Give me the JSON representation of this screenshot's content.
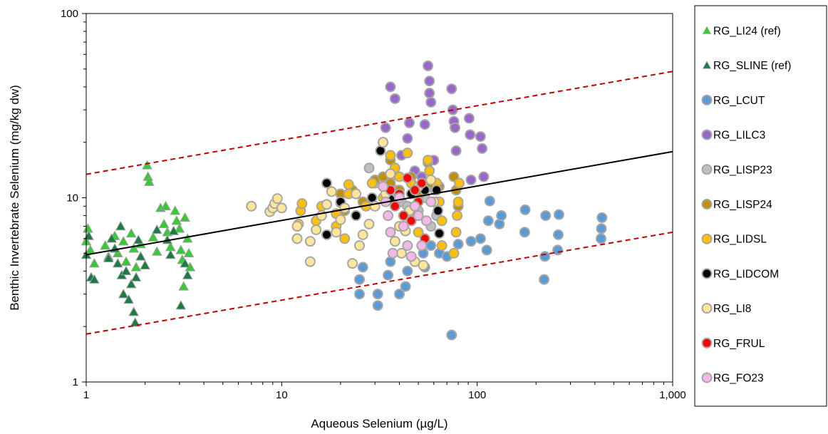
{
  "chart_data": {
    "type": "scatter",
    "title": "",
    "xlabel": "Aqueous Selenium (µg/L)",
    "ylabel": "Benthic Invertebrate Selenium (mg/kg dw)",
    "xscale": "log",
    "yscale": "log",
    "xlim": [
      1,
      1000
    ],
    "ylim": [
      1,
      100
    ],
    "x_ticks": [
      1,
      10,
      100,
      1000
    ],
    "x_tick_labels": [
      "1",
      "10",
      "100",
      "1,000"
    ],
    "y_ticks": [
      1,
      10,
      100
    ],
    "y_tick_labels": [
      "1",
      "10",
      "100"
    ],
    "grid": false,
    "legend_position": "right",
    "fit_line": {
      "style": "solid",
      "color": "#000000",
      "points": [
        [
          1,
          4.9
        ],
        [
          1000,
          17.8
        ]
      ]
    },
    "prediction_bounds": [
      {
        "style": "dashed",
        "color": "#c00000",
        "points": [
          [
            1,
            13.4
          ],
          [
            1000,
            48.5
          ]
        ]
      },
      {
        "style": "dashed",
        "color": "#c00000",
        "points": [
          [
            1,
            1.82
          ],
          [
            1000,
            6.5
          ]
        ]
      }
    ],
    "series": [
      {
        "name": "RG_LI24 (ref)",
        "marker": "triangle",
        "color": "#33cc33",
        "points": [
          [
            1.0,
            5.8
          ],
          [
            1.02,
            6.8
          ],
          [
            1.05,
            5.2
          ],
          [
            1.1,
            4.4
          ],
          [
            1.25,
            5.5
          ],
          [
            1.3,
            4.8
          ],
          [
            1.4,
            6.2
          ],
          [
            1.45,
            5.0
          ],
          [
            1.55,
            5.8
          ],
          [
            1.6,
            4.5
          ],
          [
            1.7,
            6.4
          ],
          [
            1.75,
            5.3
          ],
          [
            1.8,
            4.2
          ],
          [
            1.9,
            5.6
          ],
          [
            2.05,
            15.0
          ],
          [
            2.07,
            13.0
          ],
          [
            2.1,
            12.2
          ],
          [
            2.2,
            6.1
          ],
          [
            2.3,
            5.1
          ],
          [
            2.4,
            8.8
          ],
          [
            2.5,
            7.2
          ],
          [
            2.55,
            9.0
          ],
          [
            2.6,
            6.5
          ],
          [
            2.7,
            5.4
          ],
          [
            2.85,
            8.5
          ],
          [
            2.9,
            7.5
          ],
          [
            3.0,
            6.8
          ],
          [
            3.05,
            5.2
          ],
          [
            3.1,
            4.6
          ],
          [
            3.15,
            3.3
          ],
          [
            3.2,
            7.8
          ],
          [
            3.3,
            6.0
          ],
          [
            3.35,
            5.0
          ],
          [
            3.4,
            4.2
          ]
        ]
      },
      {
        "name": "RG_SLINE (ref)",
        "marker": "triangle",
        "color": "#1e7b45",
        "points": [
          [
            1.0,
            4.9
          ],
          [
            1.03,
            6.2
          ],
          [
            1.06,
            3.7
          ],
          [
            1.1,
            3.6
          ],
          [
            1.3,
            4.7
          ],
          [
            1.35,
            6.0
          ],
          [
            1.4,
            5.3
          ],
          [
            1.45,
            4.4
          ],
          [
            1.5,
            7.0
          ],
          [
            1.52,
            3.8
          ],
          [
            1.55,
            3.0
          ],
          [
            1.6,
            4.0
          ],
          [
            1.65,
            2.8
          ],
          [
            1.7,
            3.4
          ],
          [
            1.75,
            2.4
          ],
          [
            1.78,
            2.1
          ],
          [
            1.8,
            3.7
          ],
          [
            1.85,
            5.9
          ],
          [
            1.9,
            4.8
          ],
          [
            2.0,
            4.3
          ],
          [
            2.3,
            6.7
          ],
          [
            2.6,
            5.9
          ],
          [
            2.7,
            4.9
          ],
          [
            2.8,
            6.6
          ],
          [
            3.05,
            2.6
          ],
          [
            3.2,
            4.4
          ],
          [
            3.3,
            3.8
          ]
        ]
      },
      {
        "name": "RG_LCUT",
        "marker": "circle",
        "color": "#5b9bd5",
        "points": [
          [
            25,
            3.0
          ],
          [
            25,
            3.6
          ],
          [
            26,
            4.2
          ],
          [
            31,
            2.6
          ],
          [
            31,
            3.0
          ],
          [
            35,
            3.8
          ],
          [
            36,
            4.5
          ],
          [
            40,
            3.0
          ],
          [
            43,
            3.3
          ],
          [
            44,
            4.0
          ],
          [
            53,
            5.0
          ],
          [
            54,
            4.2
          ],
          [
            58,
            5.5
          ],
          [
            64,
            5.0
          ],
          [
            70,
            4.8
          ],
          [
            74,
            1.8
          ],
          [
            80,
            5.6
          ],
          [
            93,
            5.8
          ],
          [
            104,
            6.0
          ],
          [
            112,
            5.2
          ],
          [
            114,
            7.5
          ],
          [
            116,
            9.6
          ],
          [
            130,
            7.2
          ],
          [
            133,
            8.0
          ],
          [
            175,
            6.5
          ],
          [
            176,
            8.6
          ],
          [
            220,
            3.6
          ],
          [
            222,
            4.8
          ],
          [
            224,
            8.0
          ],
          [
            258,
            5.2
          ],
          [
            260,
            6.3
          ],
          [
            262,
            8.1
          ],
          [
            430,
            6.0
          ],
          [
            432,
            6.8
          ],
          [
            435,
            7.8
          ]
        ]
      },
      {
        "name": "RG_LILC3",
        "marker": "circle",
        "color": "#9966cc",
        "points": [
          [
            36,
            40.0
          ],
          [
            38,
            34.5
          ],
          [
            34,
            24.0
          ],
          [
            41,
            17.0
          ],
          [
            44,
            21.0
          ],
          [
            45,
            25.5
          ],
          [
            48,
            14.0
          ],
          [
            52,
            13.0
          ],
          [
            54,
            25.0
          ],
          [
            56,
            52.0
          ],
          [
            57,
            43.0
          ],
          [
            57,
            37.0
          ],
          [
            58,
            33.0
          ],
          [
            60,
            16.0
          ],
          [
            61,
            11.0
          ],
          [
            74,
            39.0
          ],
          [
            75,
            30.0
          ],
          [
            76,
            26.0
          ],
          [
            77,
            24.0
          ],
          [
            78,
            18.0
          ],
          [
            91,
            27.0
          ],
          [
            92,
            22.0
          ],
          [
            93,
            12.5
          ],
          [
            104,
            21.5
          ],
          [
            106,
            18.5
          ],
          [
            108,
            13.0
          ]
        ]
      },
      {
        "name": "RG_LISP23",
        "marker": "circle",
        "color": "#bfbfbf",
        "points": [
          [
            28,
            14.5
          ],
          [
            30,
            12.0
          ],
          [
            33,
            20.0
          ],
          [
            36,
            13.0
          ],
          [
            38,
            11.0
          ],
          [
            41,
            9.5
          ],
          [
            44,
            9.0
          ],
          [
            46,
            7.5
          ],
          [
            50,
            8.5
          ],
          [
            54,
            10.0
          ],
          [
            58,
            7.0
          ],
          [
            62,
            8.0
          ]
        ]
      },
      {
        "name": "RG_LISP24",
        "marker": "circle",
        "color": "#bf9000",
        "points": [
          [
            20,
            10.5
          ],
          [
            21,
            8.5
          ],
          [
            23,
            11.0
          ],
          [
            26,
            9.5
          ],
          [
            30,
            12.5
          ],
          [
            33,
            13.0
          ],
          [
            36,
            16.0
          ],
          [
            36,
            12.0
          ],
          [
            40,
            11.0
          ],
          [
            46,
            13.0
          ],
          [
            51,
            10.5
          ],
          [
            56,
            15.5
          ],
          [
            58,
            12.0
          ],
          [
            62,
            9.5
          ],
          [
            64,
            11.5
          ],
          [
            76,
            13.0
          ],
          [
            78,
            11.0
          ],
          [
            80,
            9.0
          ]
        ]
      },
      {
        "name": "RG_LIDSL",
        "marker": "circle",
        "color": "#ffc000",
        "points": [
          [
            12,
            6.0
          ],
          [
            12.2,
            7.2
          ],
          [
            12.5,
            8.5
          ],
          [
            12.7,
            9.3
          ],
          [
            15,
            7.5
          ],
          [
            16,
            9.0
          ],
          [
            19,
            7.0
          ],
          [
            19,
            8.2
          ],
          [
            20,
            9.4
          ],
          [
            21,
            6.0
          ],
          [
            22,
            10.5
          ],
          [
            22,
            11.8
          ],
          [
            24,
            8.0
          ],
          [
            27,
            9.0
          ],
          [
            29,
            12.0
          ],
          [
            33,
            10.0
          ],
          [
            36,
            17.0
          ],
          [
            38,
            14.5
          ],
          [
            40,
            13.0
          ],
          [
            44,
            17.5
          ],
          [
            46,
            12.0
          ],
          [
            48,
            8.0
          ],
          [
            50,
            6.5
          ],
          [
            54,
            11.0
          ],
          [
            56,
            16.0
          ],
          [
            57,
            14.0
          ],
          [
            62,
            12.0
          ],
          [
            64,
            9.5
          ],
          [
            66,
            7.5
          ],
          [
            66,
            5.5
          ],
          [
            76,
            5.0
          ],
          [
            78,
            6.5
          ],
          [
            79,
            8.0
          ],
          [
            80,
            9.5
          ],
          [
            81,
            12.0
          ]
        ]
      },
      {
        "name": "RG_LIDCOM",
        "marker": "circle",
        "color": "#000000",
        "points": [
          [
            17,
            12.0
          ],
          [
            17,
            6.3
          ],
          [
            20,
            9.5
          ],
          [
            24,
            8.0
          ],
          [
            29,
            10.0
          ],
          [
            32,
            18.0
          ],
          [
            36,
            9.8
          ],
          [
            40,
            10.0
          ],
          [
            46,
            10.5
          ],
          [
            54,
            11.0
          ],
          [
            62,
            11.0
          ],
          [
            63,
            8.5
          ],
          [
            64,
            6.4
          ]
        ]
      },
      {
        "name": "RG_LI8",
        "marker": "circle",
        "color": "#ffe699",
        "points": [
          [
            7,
            9.0
          ],
          [
            8.7,
            8.4
          ],
          [
            9.0,
            8.8
          ],
          [
            9.2,
            9.3
          ],
          [
            9.5,
            9.9
          ],
          [
            10.0,
            8.8
          ],
          [
            12,
            6.0
          ],
          [
            12,
            7.0
          ],
          [
            14,
            4.5
          ],
          [
            14,
            5.8
          ],
          [
            15,
            6.7
          ],
          [
            16,
            8.0
          ],
          [
            17,
            9.2
          ],
          [
            18,
            10.8
          ],
          [
            19,
            6.5
          ],
          [
            20,
            7.6
          ],
          [
            21,
            8.8
          ],
          [
            23,
            4.4
          ],
          [
            24,
            10.5
          ],
          [
            25,
            5.5
          ],
          [
            26,
            6.3
          ],
          [
            28,
            7.2
          ],
          [
            30,
            9.0
          ],
          [
            33,
            20.0
          ],
          [
            34,
            10.5
          ],
          [
            36,
            13.5
          ],
          [
            38,
            5.8
          ],
          [
            40,
            7.0
          ],
          [
            41,
            5.0
          ],
          [
            43,
            6.6
          ],
          [
            45,
            8.5
          ],
          [
            48,
            4.5
          ],
          [
            50,
            11.5
          ],
          [
            53,
            4.3
          ],
          [
            58,
            12.5
          ],
          [
            60,
            9.5
          ]
        ]
      },
      {
        "name": "RG_FRUL",
        "marker": "circle",
        "color": "#ff0000",
        "points": [
          [
            36,
            11.0
          ],
          [
            38,
            9.0
          ],
          [
            40,
            10.5
          ],
          [
            42,
            8.0
          ],
          [
            44,
            12.8
          ],
          [
            46,
            7.5
          ],
          [
            48,
            11.0
          ],
          [
            50,
            9.5
          ],
          [
            52,
            12.0
          ],
          [
            54,
            6.0
          ]
        ]
      },
      {
        "name": "RG_FO23",
        "marker": "circle",
        "color": "#f4b8e4",
        "points": [
          [
            33,
            11.5
          ],
          [
            34,
            9.5
          ],
          [
            35,
            8.0
          ],
          [
            36,
            6.5
          ],
          [
            37,
            5.0
          ],
          [
            40,
            10.0
          ],
          [
            42,
            7.0
          ],
          [
            44,
            5.5
          ],
          [
            46,
            4.8
          ],
          [
            48,
            9.0
          ],
          [
            50,
            8.0
          ],
          [
            52,
            5.5
          ],
          [
            55,
            7.5
          ],
          [
            58,
            9.5
          ]
        ]
      }
    ]
  },
  "colors": {
    "marker_outline": "#a6a6a6",
    "triangle_outline": "#9e9e9e",
    "fit_line": "#000000",
    "bounds_line": "#c00000"
  }
}
